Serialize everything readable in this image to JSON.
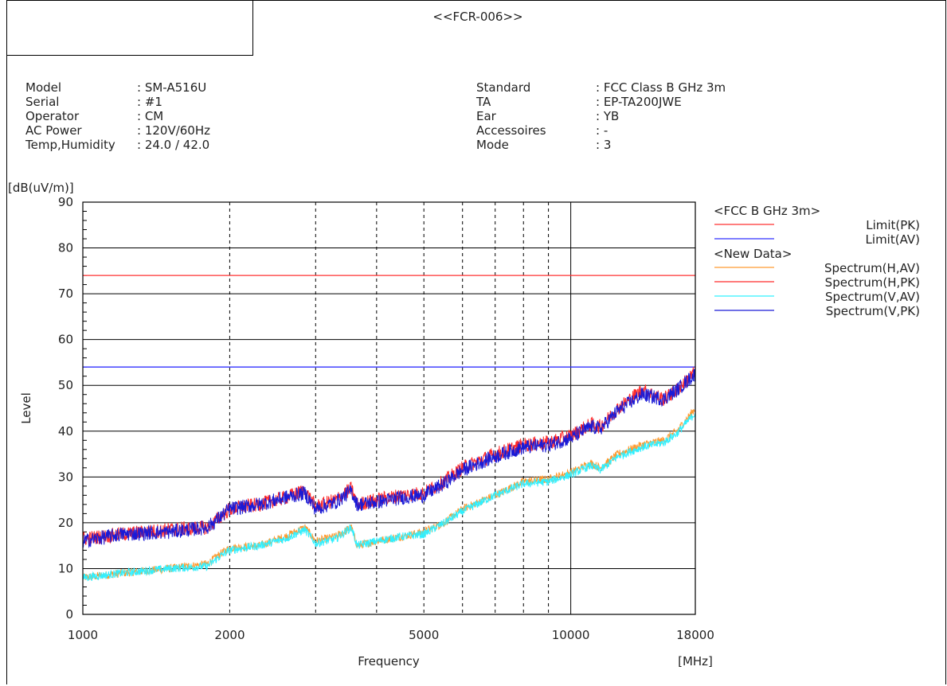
{
  "report_id": "<<FCR-006>>",
  "info_left": [
    {
      "label": "Model",
      "value": ": SM-A516U"
    },
    {
      "label": "Serial",
      "value": ": #1"
    },
    {
      "label": "Operator",
      "value": ": CM"
    },
    {
      "label": "AC Power",
      "value": ": 120V/60Hz"
    },
    {
      "label": "Temp,Humidity",
      "value": ": 24.0 / 42.0"
    }
  ],
  "info_right": [
    {
      "label": "Standard",
      "value": ": FCC Class B GHz 3m"
    },
    {
      "label": "TA",
      "value": ": EP-TA200JWE"
    },
    {
      "label": "Ear",
      "value": ": YB"
    },
    {
      "label": "Accessoires",
      "value": ": -"
    },
    {
      "label": "Mode",
      "value": ": 3"
    }
  ],
  "chart_data": {
    "type": "line",
    "xscale": "log",
    "xlim": [
      1000,
      18000
    ],
    "ylim": [
      0,
      90
    ],
    "xlabel": "Frequency",
    "xunit": "[MHz]",
    "ylabel": "Level",
    "yunit": "[dB(uV/m)]",
    "x_ticks": [
      1000,
      2000,
      5000,
      10000,
      18000
    ],
    "y_ticks": [
      0,
      10,
      20,
      30,
      40,
      50,
      60,
      70,
      80,
      90
    ],
    "dashed_gridlines_x": [
      2000,
      3000,
      4000,
      5000,
      6000,
      7000,
      8000,
      9000
    ],
    "solid_gridline_x": 10000,
    "grid": true,
    "legend_position": "right",
    "legend_groups": [
      {
        "title": "<FCC B GHz 3m>",
        "entries": [
          "Limit(PK)",
          "Limit(AV)"
        ]
      },
      {
        "title": "<New Data>",
        "entries": [
          "Spectrum(H,AV)",
          "Spectrum(H,PK)",
          "Spectrum(V,AV)",
          "Spectrum(V,PK)"
        ]
      }
    ],
    "limits": [
      {
        "name": "Limit(PK)",
        "value": 74,
        "color": "#ff3030"
      },
      {
        "name": "Limit(AV)",
        "value": 54,
        "color": "#3030ff"
      }
    ],
    "series": [
      {
        "name": "Spectrum(H,AV)",
        "color": "#ff9a30",
        "x": [
          1000,
          1200,
          1500,
          1800,
          1900,
          2000,
          2300,
          2600,
          2850,
          3000,
          3300,
          3550,
          3650,
          4000,
          4500,
          5000,
          5500,
          6000,
          7000,
          8000,
          9000,
          10000,
          11000,
          11500,
          12500,
          14000,
          15500,
          16500,
          18000
        ],
        "y": [
          8,
          9,
          10,
          11,
          13,
          14.5,
          15,
          17,
          19,
          16,
          17,
          19,
          15,
          16,
          17,
          18,
          20,
          23,
          26,
          29,
          29.5,
          31,
          33,
          32,
          35,
          37,
          38,
          40,
          45
        ]
      },
      {
        "name": "Spectrum(H,PK)",
        "color": "#ff2a2a",
        "x": [
          1000,
          1200,
          1500,
          1800,
          1900,
          2000,
          2300,
          2600,
          2850,
          3000,
          3300,
          3550,
          3650,
          4000,
          4500,
          5000,
          5500,
          6000,
          7000,
          8000,
          9000,
          10000,
          11000,
          11500,
          12500,
          14000,
          15500,
          16500,
          18000
        ],
        "y": [
          16.5,
          17.5,
          18.5,
          19,
          21,
          23,
          24,
          25.5,
          27,
          23.5,
          25,
          27.5,
          24,
          25,
          26,
          26.5,
          29,
          32,
          35,
          37,
          37.5,
          39,
          41.5,
          41,
          45,
          49,
          47,
          49,
          53
        ]
      },
      {
        "name": "Spectrum(V,AV)",
        "color": "#30f0ff",
        "x": [
          1000,
          1200,
          1500,
          1800,
          1900,
          2000,
          2300,
          2600,
          2850,
          3000,
          3300,
          3550,
          3650,
          4000,
          4500,
          5000,
          5500,
          6000,
          7000,
          8000,
          9000,
          10000,
          11000,
          11500,
          12500,
          14000,
          15500,
          16500,
          18000
        ],
        "y": [
          8,
          9,
          10,
          10.5,
          12.5,
          14,
          15,
          16.5,
          18.5,
          15.5,
          16.5,
          19,
          15,
          16,
          17,
          17.5,
          20,
          22.5,
          26,
          28.5,
          29,
          30.5,
          32.5,
          31.5,
          34.5,
          36.5,
          37.5,
          39.5,
          44
        ]
      },
      {
        "name": "Spectrum(V,PK)",
        "color": "#1a1ad6",
        "x": [
          1000,
          1200,
          1500,
          1800,
          1900,
          2000,
          2300,
          2600,
          2850,
          3000,
          3300,
          3550,
          3650,
          4000,
          4500,
          5000,
          5500,
          6000,
          7000,
          8000,
          9000,
          10000,
          11000,
          11500,
          12500,
          14000,
          15500,
          16500,
          18000
        ],
        "y": [
          16,
          17.5,
          18,
          19,
          21,
          23,
          24,
          25.5,
          26.5,
          23,
          24.5,
          27,
          24,
          24.5,
          25.5,
          26,
          28.5,
          31.5,
          34.5,
          36.5,
          37,
          38.5,
          41,
          40.5,
          44.5,
          48,
          47,
          49,
          52.5
        ]
      }
    ]
  }
}
